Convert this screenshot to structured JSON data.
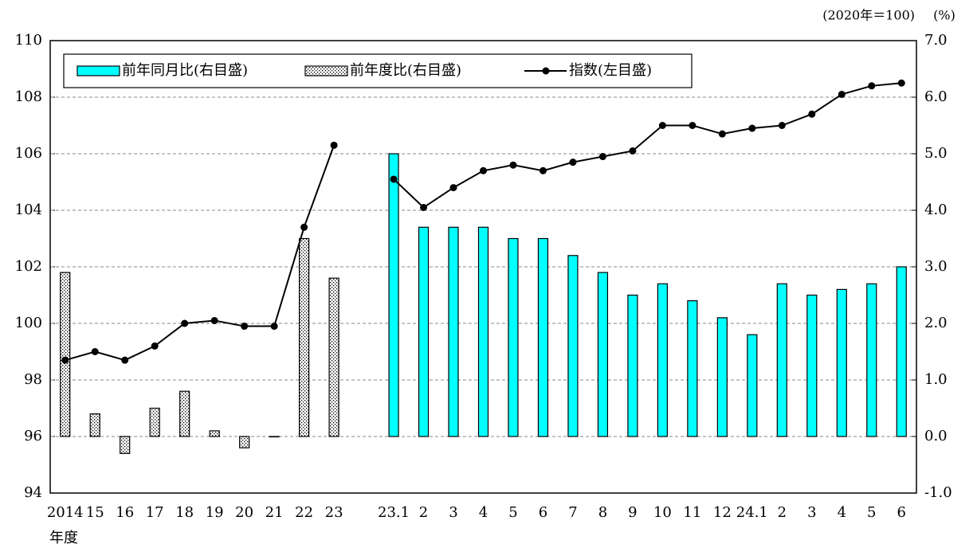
{
  "chart_data": {
    "type": "bar",
    "y_unit_label": "(2020年＝100)",
    "y2_unit_label": "(%)",
    "x_label": "年度",
    "categories": [
      "2014",
      "15",
      "16",
      "17",
      "18",
      "19",
      "20",
      "21",
      "22",
      "23",
      null,
      "23.1",
      "2",
      "3",
      "4",
      "5",
      "6",
      "7",
      "8",
      "9",
      "10",
      "11",
      "12",
      "24.1",
      "2",
      "3",
      "4",
      "5",
      "6"
    ],
    "series": [
      {
        "name": "前年同月比(右目盛)",
        "type": "bar",
        "axis": "y2",
        "color": "#00ffff",
        "pattern": "solid",
        "values": [
          null,
          null,
          null,
          null,
          null,
          null,
          null,
          null,
          null,
          null,
          null,
          5.0,
          3.7,
          3.7,
          3.7,
          3.5,
          3.5,
          3.2,
          2.9,
          2.5,
          2.7,
          2.4,
          2.1,
          1.8,
          2.7,
          2.5,
          2.6,
          2.7,
          3.0
        ]
      },
      {
        "name": "前年度比(右目盛)",
        "type": "bar",
        "axis": "y2",
        "color": "#ffffff",
        "pattern": "dots",
        "values": [
          2.9,
          0.4,
          -0.3,
          0.5,
          0.8,
          0.1,
          -0.2,
          0.0,
          3.5,
          2.8,
          null,
          null,
          null,
          null,
          null,
          null,
          null,
          null,
          null,
          null,
          null,
          null,
          null,
          null,
          null,
          null,
          null,
          null,
          null
        ]
      },
      {
        "name": "指数(左目盛)",
        "type": "line",
        "axis": "y",
        "color": "#000000",
        "values": [
          98.7,
          99.0,
          98.7,
          99.2,
          100.0,
          100.1,
          99.9,
          99.9,
          103.4,
          106.3,
          null,
          105.1,
          104.1,
          104.8,
          105.4,
          105.6,
          105.4,
          105.7,
          105.9,
          106.1,
          107.0,
          107.0,
          106.7,
          106.9,
          107.0,
          107.4,
          108.1,
          108.4,
          108.5
        ]
      }
    ],
    "ylim": [
      94,
      110
    ],
    "yticks": [
      94,
      96,
      98,
      100,
      102,
      104,
      106,
      108,
      110
    ],
    "y2lim": [
      -1,
      7
    ],
    "y2ticks": [
      {
        "value": -1,
        "label": "-1.0"
      },
      {
        "value": 0,
        "label": "0.0"
      },
      {
        "value": 1,
        "label": "1.0"
      },
      {
        "value": 2,
        "label": "2.0"
      },
      {
        "value": 3,
        "label": "3.0"
      },
      {
        "value": 4,
        "label": "4.0"
      },
      {
        "value": 5,
        "label": "5.0"
      },
      {
        "value": 6,
        "label": "6.0"
      },
      {
        "value": 7,
        "label": "7.0"
      }
    ],
    "grid": true,
    "legend": "top-left"
  }
}
